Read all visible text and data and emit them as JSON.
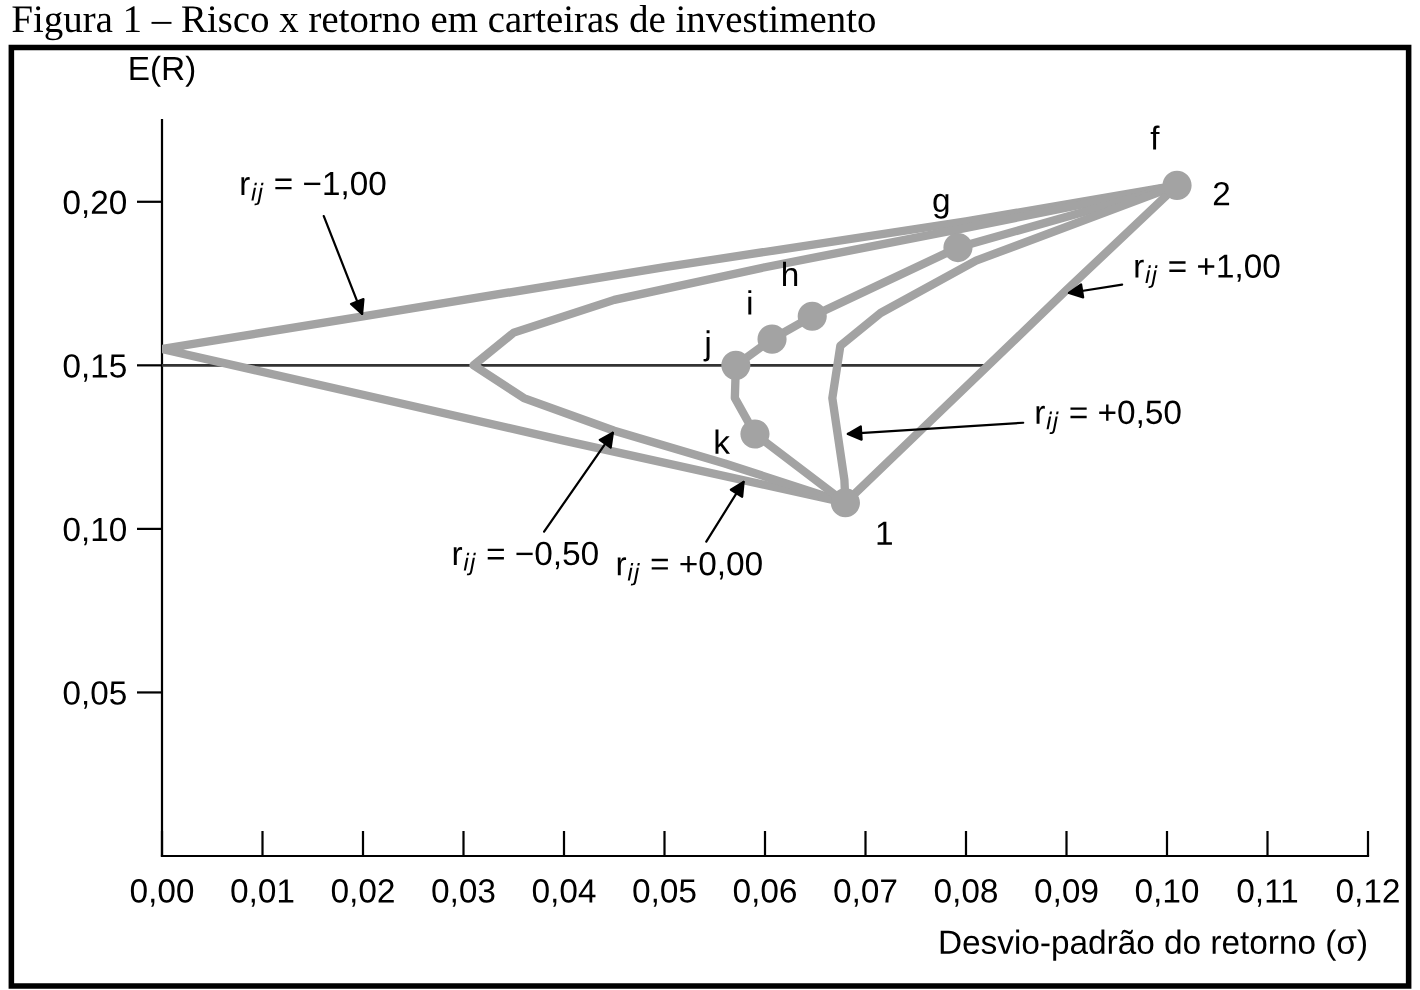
{
  "chart_data": {
    "type": "line",
    "title": "Figura 1 – Risco x retorno em carteiras de investimento",
    "xlabel": "Desvio-padrão do retorno (σ)",
    "ylabel": "E(R)",
    "xlim": [
      0,
      0.12
    ],
    "ylim": [
      0,
      0.225
    ],
    "xticks": [
      {
        "value": 0,
        "label": "0,00"
      },
      {
        "value": 0.01,
        "label": "0,01"
      },
      {
        "value": 0.02,
        "label": "0,02"
      },
      {
        "value": 0.03,
        "label": "0,03"
      },
      {
        "value": 0.04,
        "label": "0,04"
      },
      {
        "value": 0.05,
        "label": "0,05"
      },
      {
        "value": 0.06,
        "label": "0,06"
      },
      {
        "value": 0.07,
        "label": "0,07"
      },
      {
        "value": 0.08,
        "label": "0,08"
      },
      {
        "value": 0.09,
        "label": "0,09"
      },
      {
        "value": 0.1,
        "label": "0,10"
      },
      {
        "value": 0.11,
        "label": "0,11"
      },
      {
        "value": 0.12,
        "label": "0,12"
      }
    ],
    "yticks": [
      {
        "value": 0.05,
        "label": "0,05"
      },
      {
        "value": 0.1,
        "label": "0,10"
      },
      {
        "value": 0.15,
        "label": "0,15"
      },
      {
        "value": 0.2,
        "label": "0,20"
      }
    ],
    "grid": false,
    "series": [
      {
        "color": "#333333",
        "x": [
          0,
          0.082
        ],
        "values": [
          0.15,
          0.15
        ]
      },
      {
        "color": "#a3a3a3",
        "x": [
          0.068,
          0.04,
          0.02,
          0.0,
          0.02,
          0.05,
          0.08,
          0.101
        ],
        "values": [
          0.108,
          0.127,
          0.141,
          0.155,
          0.165,
          0.18,
          0.194,
          0.205
        ]
      },
      {
        "color": "#a3a3a3",
        "x": [
          0.068,
          0.056,
          0.045,
          0.036,
          0.031,
          0.035,
          0.045,
          0.06,
          0.08,
          0.101
        ],
        "values": [
          0.108,
          0.12,
          0.13,
          0.14,
          0.15,
          0.16,
          0.17,
          0.18,
          0.192,
          0.205
        ]
      },
      {
        "color": "#a3a3a3",
        "x": [
          0.068,
          0.059,
          0.057,
          0.0571,
          0.0607,
          0.0647,
          0.0792,
          0.101
        ],
        "values": [
          0.108,
          0.129,
          0.14,
          0.15,
          0.158,
          0.165,
          0.186,
          0.205
        ]
      },
      {
        "color": "#a3a3a3",
        "x": [
          0.068,
          0.0679,
          0.0667,
          0.0675,
          0.0715,
          0.081,
          0.101
        ],
        "values": [
          0.108,
          0.115,
          0.14,
          0.156,
          0.166,
          0.182,
          0.205
        ]
      },
      {
        "color": "#a3a3a3",
        "x": [
          0.068,
          0.09,
          0.101
        ],
        "values": [
          0.108,
          0.173,
          0.205
        ]
      },
      {
        "type": "scatter",
        "color": "#a3a3a3",
        "marker": "circle",
        "x": [
          0.068,
          0.059,
          0.0571,
          0.0607,
          0.0647,
          0.0792,
          0.101
        ],
        "values": [
          0.108,
          0.129,
          0.15,
          0.158,
          0.165,
          0.186,
          0.205
        ]
      }
    ],
    "annotations": [
      {
        "text": "r$_{ij}$ = −1,00",
        "x": 0.02,
        "y": 0.165
      },
      {
        "text": "r$_{ij}$ = −0,50",
        "x": 0.045,
        "y": 0.13
      },
      {
        "text": "r$_{ij}$ = +0,00",
        "x": 0.058,
        "y": 0.115
      },
      {
        "text": "r$_{ij}$ = +0,50",
        "x": 0.068,
        "y": 0.129
      },
      {
        "text": "r$_{ij}$ = +1,00",
        "x": 0.09,
        "y": 0.172
      },
      {
        "text": "1",
        "x": 0.068,
        "y": 0.108
      },
      {
        "text": "2",
        "x": 0.101,
        "y": 0.205
      },
      {
        "text": "f",
        "x": 0.101,
        "y": 0.205
      },
      {
        "text": "g",
        "x": 0.0792,
        "y": 0.186
      },
      {
        "text": "h",
        "x": 0.0647,
        "y": 0.165
      },
      {
        "text": "i",
        "x": 0.0607,
        "y": 0.158
      },
      {
        "text": "j",
        "x": 0.0571,
        "y": 0.15
      },
      {
        "text": "k",
        "x": 0.059,
        "y": 0.129
      }
    ]
  }
}
